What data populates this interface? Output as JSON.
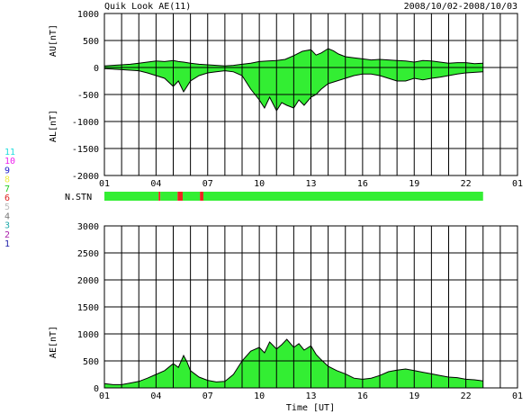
{
  "header": {
    "title": "Quik Look AE(11)",
    "date_range": "2008/10/02-2008/10/03"
  },
  "colors": {
    "fill": "#33ee33",
    "outline": "#000000",
    "grid": "#000000",
    "station_low": "#33ee33",
    "station_drop": "#ee2222"
  },
  "legend": {
    "items": [
      {
        "label": "11",
        "color": "#22dddd"
      },
      {
        "label": "10",
        "color": "#ee22ee"
      },
      {
        "label": "9",
        "color": "#2222cc"
      },
      {
        "label": "8",
        "color": "#eeee44"
      },
      {
        "label": "7",
        "color": "#22cc22"
      },
      {
        "label": "6",
        "color": "#dd2222"
      },
      {
        "label": "5",
        "color": "#bbbbbb"
      },
      {
        "label": "4",
        "color": "#777777"
      },
      {
        "label": "3",
        "color": "#22aaaa"
      },
      {
        "label": "2",
        "color": "#aa22aa"
      },
      {
        "label": "1",
        "color": "#2222aa"
      }
    ]
  },
  "chart_data": [
    {
      "type": "area",
      "name": "au-al",
      "ylabel_upper": "AU[nT]",
      "ylabel_lower": "AL[nT]",
      "ylim": [
        -2000,
        1000
      ],
      "yticks": [
        1000,
        500,
        0,
        -500,
        -1000,
        -1500,
        -2000
      ],
      "xlim": [
        1,
        25
      ],
      "xticks": [
        "01",
        "04",
        "07",
        "10",
        "13",
        "16",
        "19",
        "22",
        "01"
      ],
      "grid": true,
      "au": {
        "x": [
          1.0,
          1.5,
          2.0,
          2.5,
          3.0,
          3.5,
          4.0,
          4.5,
          5.0,
          5.3,
          5.6,
          6.0,
          6.5,
          7.0,
          7.5,
          8.0,
          8.5,
          9.0,
          9.5,
          10.0,
          10.5,
          11.0,
          11.5,
          12.0,
          12.5,
          13.0,
          13.3,
          13.6,
          14.0,
          14.3,
          14.6,
          15.0,
          15.5,
          16.0,
          16.5,
          17.0,
          17.5,
          18.0,
          18.5,
          19.0,
          19.5,
          20.0,
          20.5,
          21.0,
          21.5,
          22.0,
          22.5,
          23.0
        ],
        "values": [
          30,
          40,
          50,
          60,
          80,
          100,
          120,
          110,
          130,
          110,
          100,
          80,
          60,
          50,
          40,
          30,
          40,
          60,
          80,
          110,
          120,
          130,
          150,
          220,
          300,
          330,
          230,
          270,
          350,
          310,
          250,
          200,
          180,
          160,
          140,
          150,
          140,
          130,
          120,
          100,
          130,
          120,
          100,
          80,
          90,
          90,
          70,
          80
        ]
      },
      "al": {
        "x": [
          1.0,
          1.5,
          2.0,
          2.5,
          3.0,
          3.5,
          4.0,
          4.5,
          5.0,
          5.3,
          5.6,
          6.0,
          6.5,
          7.0,
          7.5,
          8.0,
          8.5,
          9.0,
          9.5,
          10.0,
          10.3,
          10.6,
          11.0,
          11.3,
          11.6,
          12.0,
          12.3,
          12.6,
          13.0,
          13.3,
          13.6,
          14.0,
          14.5,
          15.0,
          15.5,
          16.0,
          16.5,
          17.0,
          17.5,
          18.0,
          18.5,
          19.0,
          19.5,
          20.0,
          20.5,
          21.0,
          21.5,
          22.0,
          22.5,
          23.0
        ],
        "values": [
          -20,
          -30,
          -40,
          -50,
          -60,
          -100,
          -150,
          -200,
          -350,
          -250,
          -450,
          -250,
          -150,
          -100,
          -80,
          -60,
          -80,
          -150,
          -400,
          -600,
          -750,
          -550,
          -800,
          -650,
          -700,
          -750,
          -600,
          -700,
          -550,
          -500,
          -400,
          -300,
          -250,
          -200,
          -150,
          -120,
          -120,
          -150,
          -200,
          -250,
          -250,
          -200,
          -230,
          -200,
          -180,
          -150,
          -120,
          -100,
          -90,
          -80
        ]
      }
    },
    {
      "type": "bar",
      "name": "station-count",
      "ylabel": "N.STN",
      "segments": [
        {
          "x0": 1.0,
          "x1": 4.15,
          "state": "low"
        },
        {
          "x0": 4.15,
          "x1": 4.25,
          "state": "drop"
        },
        {
          "x0": 4.25,
          "x1": 5.25,
          "state": "low"
        },
        {
          "x0": 5.25,
          "x1": 5.55,
          "state": "drop"
        },
        {
          "x0": 5.55,
          "x1": 6.55,
          "state": "low"
        },
        {
          "x0": 6.55,
          "x1": 6.75,
          "state": "drop"
        },
        {
          "x0": 6.75,
          "x1": 23.0,
          "state": "low"
        }
      ],
      "xlim": [
        1,
        25
      ]
    },
    {
      "type": "area",
      "name": "ae",
      "ylabel": "AE[nT]",
      "xlabel": "Time [UT]",
      "ylim": [
        0,
        3000
      ],
      "yticks": [
        3000,
        2500,
        2000,
        1500,
        1000,
        500,
        0
      ],
      "xlim": [
        1,
        25
      ],
      "xticks": [
        "01",
        "04",
        "07",
        "10",
        "13",
        "16",
        "19",
        "22",
        "01"
      ],
      "grid": true,
      "x": [
        1.0,
        1.5,
        2.0,
        2.5,
        3.0,
        3.5,
        4.0,
        4.5,
        5.0,
        5.3,
        5.6,
        5.8,
        6.0,
        6.5,
        7.0,
        7.5,
        8.0,
        8.5,
        9.0,
        9.5,
        10.0,
        10.3,
        10.6,
        11.0,
        11.3,
        11.6,
        12.0,
        12.3,
        12.6,
        13.0,
        13.3,
        13.6,
        14.0,
        14.5,
        15.0,
        15.5,
        16.0,
        16.5,
        17.0,
        17.5,
        18.0,
        18.5,
        19.0,
        19.5,
        20.0,
        20.5,
        21.0,
        21.5,
        22.0,
        22.5,
        23.0
      ],
      "values": [
        80,
        60,
        60,
        90,
        120,
        180,
        250,
        320,
        450,
        380,
        600,
        480,
        320,
        200,
        140,
        110,
        120,
        250,
        500,
        680,
        750,
        650,
        850,
        720,
        800,
        900,
        750,
        820,
        700,
        780,
        620,
        520,
        400,
        320,
        260,
        180,
        160,
        180,
        230,
        300,
        330,
        350,
        320,
        290,
        260,
        230,
        200,
        190,
        160,
        150,
        130
      ]
    }
  ]
}
